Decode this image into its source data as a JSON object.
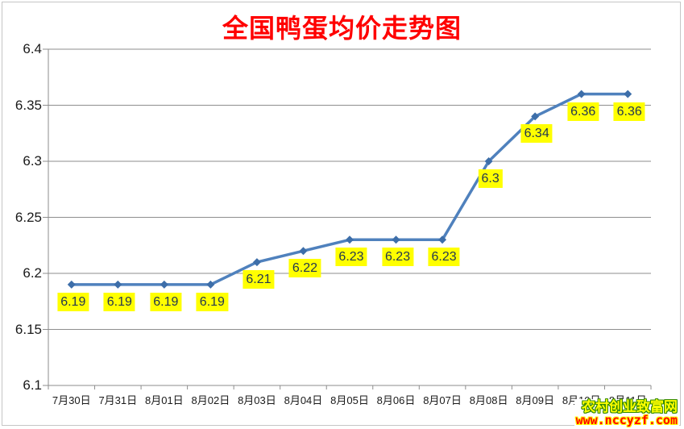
{
  "chart_data": {
    "type": "line",
    "title": "全国鸭蛋均价走势图",
    "categories": [
      "7月30日",
      "7月31日",
      "8月01日",
      "8月02日",
      "8月03日",
      "8月04日",
      "8月05日",
      "8月06日",
      "8月07日",
      "8月08日",
      "8月09日",
      "8月10日",
      "8月11日"
    ],
    "series": [
      {
        "name": "全国鸭蛋均价",
        "values": [
          6.19,
          6.19,
          6.19,
          6.19,
          6.21,
          6.22,
          6.23,
          6.23,
          6.23,
          6.3,
          6.34,
          6.36,
          6.36
        ],
        "point_labels": [
          "6.19",
          "6.19",
          "6.19",
          "6.19",
          "6.21",
          "6.22",
          "6.23",
          "6.23",
          "6.23",
          "6.3",
          "6.34",
          "6.36",
          "6.36"
        ]
      }
    ],
    "ylim": [
      6.1,
      6.4
    ],
    "ytick_values": [
      6.4,
      6.35,
      6.3,
      6.25,
      6.2,
      6.15,
      6.1
    ],
    "ytick_labels": [
      "6.4",
      "6.35",
      "6.3",
      "6.25",
      "6.2",
      "6.15",
      "6.1"
    ],
    "grid": true,
    "legend_position": "none",
    "colors": {
      "title": "#ff0000",
      "line": "#4f81bd",
      "marker": "#3d6ea9",
      "label_bg": "#ffff00",
      "label_text": "#233750",
      "grid": "#8e8e8e",
      "axis_text": "#1a1a1a"
    }
  },
  "watermark": {
    "line1": "农村创业致富网",
    "line2": "www.nccyzf.com",
    "line1_color": "#ffff00",
    "line1_outline": "#338a00",
    "line2_color": "#ff0000",
    "line2_outline": "#ffff00"
  }
}
